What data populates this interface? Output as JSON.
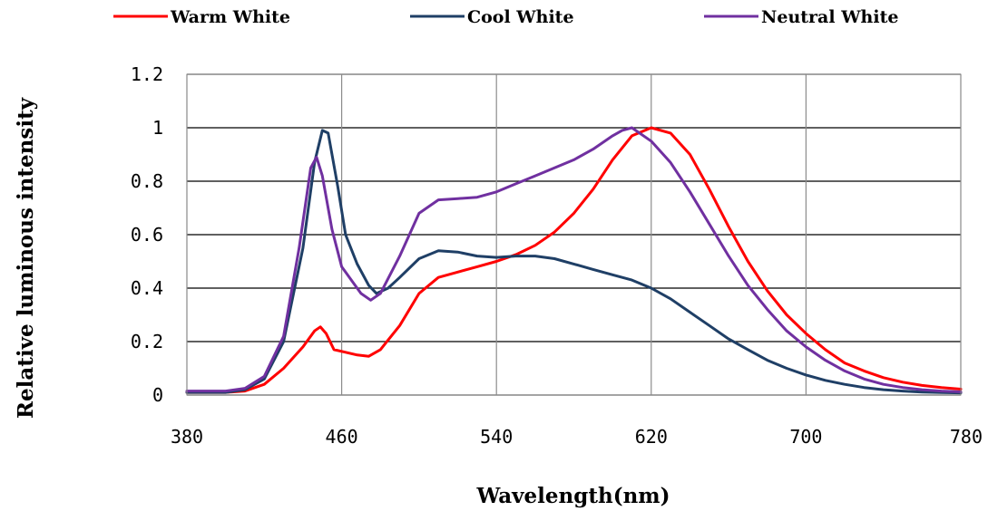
{
  "chart_data": {
    "type": "line",
    "title": "",
    "xlabel": "Wavelength(nm)",
    "ylabel": "Relative luminous intensity",
    "xlim": [
      380,
      780
    ],
    "ylim": [
      0,
      1.2
    ],
    "x_ticks": [
      380,
      460,
      540,
      620,
      700,
      780
    ],
    "y_ticks": [
      0,
      0.2,
      0.4,
      0.6,
      0.8,
      1,
      1.2
    ],
    "x_tick_labels": [
      "380",
      "460",
      "540",
      "620",
      "700",
      "780"
    ],
    "y_tick_labels": [
      "0",
      "0.2",
      "0.4",
      "0.6",
      "0.8",
      "1",
      "1.2"
    ],
    "grid": true,
    "legend_position": "top",
    "series": [
      {
        "name": "Warm White",
        "color": "#ff0000",
        "points": [
          [
            380,
            0.01
          ],
          [
            400,
            0.01
          ],
          [
            410,
            0.015
          ],
          [
            420,
            0.04
          ],
          [
            430,
            0.1
          ],
          [
            440,
            0.18
          ],
          [
            446,
            0.24
          ],
          [
            449,
            0.255
          ],
          [
            452,
            0.23
          ],
          [
            456,
            0.17
          ],
          [
            462,
            0.16
          ],
          [
            468,
            0.15
          ],
          [
            474,
            0.145
          ],
          [
            480,
            0.17
          ],
          [
            490,
            0.26
          ],
          [
            500,
            0.38
          ],
          [
            510,
            0.44
          ],
          [
            520,
            0.46
          ],
          [
            530,
            0.48
          ],
          [
            540,
            0.5
          ],
          [
            550,
            0.525
          ],
          [
            560,
            0.56
          ],
          [
            570,
            0.61
          ],
          [
            580,
            0.68
          ],
          [
            590,
            0.77
          ],
          [
            600,
            0.88
          ],
          [
            610,
            0.97
          ],
          [
            620,
            1.0
          ],
          [
            630,
            0.98
          ],
          [
            640,
            0.9
          ],
          [
            650,
            0.77
          ],
          [
            660,
            0.63
          ],
          [
            670,
            0.5
          ],
          [
            680,
            0.39
          ],
          [
            690,
            0.3
          ],
          [
            700,
            0.23
          ],
          [
            710,
            0.17
          ],
          [
            720,
            0.12
          ],
          [
            730,
            0.09
          ],
          [
            740,
            0.065
          ],
          [
            750,
            0.048
          ],
          [
            760,
            0.036
          ],
          [
            770,
            0.028
          ],
          [
            780,
            0.022
          ]
        ]
      },
      {
        "name": "Cool White",
        "color": "#1f3f66",
        "points": [
          [
            380,
            0.01
          ],
          [
            400,
            0.01
          ],
          [
            410,
            0.02
          ],
          [
            420,
            0.06
          ],
          [
            430,
            0.2
          ],
          [
            440,
            0.55
          ],
          [
            446,
            0.87
          ],
          [
            450,
            0.99
          ],
          [
            453,
            0.98
          ],
          [
            458,
            0.78
          ],
          [
            462,
            0.6
          ],
          [
            468,
            0.49
          ],
          [
            474,
            0.41
          ],
          [
            478,
            0.38
          ],
          [
            484,
            0.4
          ],
          [
            490,
            0.44
          ],
          [
            500,
            0.51
          ],
          [
            510,
            0.54
          ],
          [
            520,
            0.535
          ],
          [
            530,
            0.52
          ],
          [
            540,
            0.515
          ],
          [
            550,
            0.52
          ],
          [
            560,
            0.52
          ],
          [
            570,
            0.51
          ],
          [
            580,
            0.49
          ],
          [
            590,
            0.47
          ],
          [
            600,
            0.45
          ],
          [
            610,
            0.43
          ],
          [
            620,
            0.4
          ],
          [
            630,
            0.36
          ],
          [
            640,
            0.31
          ],
          [
            650,
            0.26
          ],
          [
            660,
            0.21
          ],
          [
            670,
            0.17
          ],
          [
            680,
            0.13
          ],
          [
            690,
            0.1
          ],
          [
            700,
            0.075
          ],
          [
            710,
            0.055
          ],
          [
            720,
            0.04
          ],
          [
            730,
            0.028
          ],
          [
            740,
            0.02
          ],
          [
            750,
            0.015
          ],
          [
            760,
            0.011
          ],
          [
            770,
            0.009
          ],
          [
            780,
            0.008
          ]
        ]
      },
      {
        "name": "Neutral White",
        "color": "#7030a0",
        "points": [
          [
            380,
            0.015
          ],
          [
            400,
            0.015
          ],
          [
            410,
            0.025
          ],
          [
            420,
            0.07
          ],
          [
            430,
            0.22
          ],
          [
            438,
            0.55
          ],
          [
            444,
            0.85
          ],
          [
            447,
            0.89
          ],
          [
            450,
            0.82
          ],
          [
            455,
            0.62
          ],
          [
            460,
            0.48
          ],
          [
            466,
            0.42
          ],
          [
            470,
            0.38
          ],
          [
            475,
            0.355
          ],
          [
            480,
            0.38
          ],
          [
            490,
            0.52
          ],
          [
            500,
            0.68
          ],
          [
            510,
            0.73
          ],
          [
            520,
            0.735
          ],
          [
            530,
            0.74
          ],
          [
            540,
            0.76
          ],
          [
            550,
            0.79
          ],
          [
            560,
            0.82
          ],
          [
            570,
            0.85
          ],
          [
            580,
            0.88
          ],
          [
            590,
            0.92
          ],
          [
            600,
            0.97
          ],
          [
            605,
            0.99
          ],
          [
            610,
            1.0
          ],
          [
            620,
            0.95
          ],
          [
            630,
            0.87
          ],
          [
            640,
            0.76
          ],
          [
            650,
            0.64
          ],
          [
            660,
            0.52
          ],
          [
            670,
            0.41
          ],
          [
            680,
            0.32
          ],
          [
            690,
            0.24
          ],
          [
            700,
            0.18
          ],
          [
            710,
            0.13
          ],
          [
            720,
            0.09
          ],
          [
            730,
            0.06
          ],
          [
            740,
            0.04
          ],
          [
            750,
            0.028
          ],
          [
            760,
            0.02
          ],
          [
            770,
            0.015
          ],
          [
            780,
            0.012
          ]
        ]
      }
    ]
  }
}
